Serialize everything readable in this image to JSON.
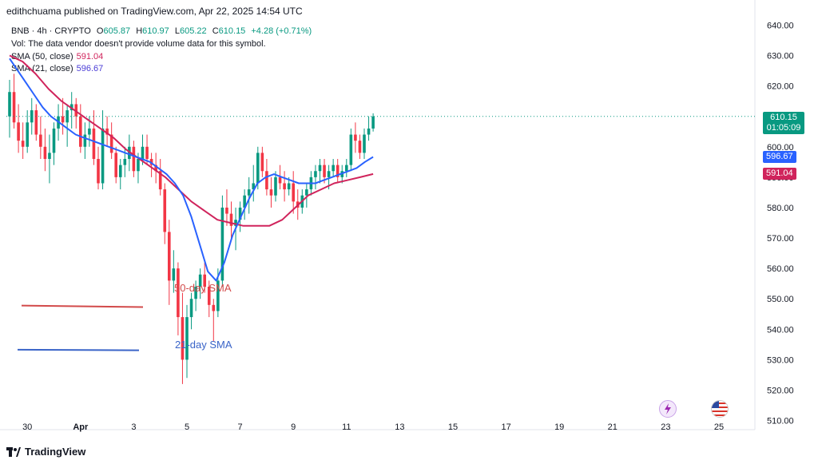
{
  "header": {
    "publisher": "edithchuama published on TradingView.com, Apr 22, 2025 14:54 UTC"
  },
  "legend": {
    "symbol": "BNB · 4h · CRYPTO",
    "o_label": "O",
    "o_value": "605.87",
    "h_label": "H",
    "h_value": "610.97",
    "l_label": "L",
    "l_value": "605.22",
    "c_label": "C",
    "c_value": "610.15",
    "change": "+4.28 (+0.71%)",
    "vol_text": "Vol: The data vendor doesn't provide volume data for this symbol.",
    "sma50_label": "SMA (50, close)",
    "sma50_value": "591.04",
    "sma21_label": "SMA (21, close)",
    "sma21_value": "596.67"
  },
  "annotations": {
    "sma50": "50-day SMA",
    "sma21": "21-day SMA"
  },
  "price_badges": {
    "last_price": "610.15",
    "countdown": "01:05:09",
    "sma21": "596.67",
    "sma50": "591.04"
  },
  "footer": {
    "brand": "TradingView"
  },
  "colors": {
    "up": "#089981",
    "down": "#f23645",
    "sma21": "#2962ff",
    "sma50": "#d0245c",
    "sma50_annot_line": "#d24a4a",
    "sma21_annot_line": "#3a64c8"
  },
  "chart_data": {
    "type": "candlestick",
    "timeframe": "4h",
    "y_ticks": [
      640,
      630,
      620,
      610,
      600,
      590,
      580,
      570,
      560,
      550,
      540,
      530,
      520,
      510
    ],
    "ylim": [
      507,
      643
    ],
    "x_ticks": [
      "30",
      "Apr",
      "3",
      "5",
      "7",
      "9",
      "11",
      "13",
      "15",
      "17",
      "19",
      "21",
      "23",
      "25"
    ],
    "x_tick_index": [
      4,
      16,
      28,
      40,
      52,
      64,
      76,
      88,
      100,
      112,
      124,
      136,
      148,
      160
    ],
    "candles": [
      [
        610,
        622,
        603,
        618
      ],
      [
        618,
        624,
        606,
        608
      ],
      [
        608,
        614,
        598,
        602
      ],
      [
        602,
        608,
        596,
        600
      ],
      [
        600,
        612,
        598,
        608
      ],
      [
        608,
        616,
        604,
        612
      ],
      [
        612,
        614,
        602,
        604
      ],
      [
        604,
        610,
        596,
        600
      ],
      [
        600,
        606,
        592,
        596
      ],
      [
        596,
        604,
        588,
        598
      ],
      [
        598,
        608,
        594,
        606
      ],
      [
        606,
        614,
        602,
        610
      ],
      [
        610,
        616,
        604,
        608
      ],
      [
        608,
        614,
        600,
        612
      ],
      [
        612,
        618,
        606,
        614
      ],
      [
        614,
        616,
        606,
        610
      ],
      [
        610,
        614,
        598,
        600
      ],
      [
        600,
        608,
        596,
        604
      ],
      [
        604,
        610,
        600,
        606
      ],
      [
        606,
        612,
        594,
        596
      ],
      [
        596,
        600,
        586,
        588
      ],
      [
        588,
        612,
        586,
        606
      ],
      [
        606,
        610,
        600,
        604
      ],
      [
        604,
        608,
        596,
        598
      ],
      [
        598,
        600,
        588,
        590
      ],
      [
        590,
        596,
        586,
        594
      ],
      [
        594,
        600,
        590,
        596
      ],
      [
        596,
        604,
        592,
        600
      ],
      [
        600,
        602,
        590,
        592
      ],
      [
        592,
        598,
        588,
        596
      ],
      [
        596,
        604,
        594,
        600
      ],
      [
        600,
        604,
        594,
        596
      ],
      [
        596,
        598,
        590,
        594
      ],
      [
        594,
        598,
        588,
        592
      ],
      [
        592,
        596,
        584,
        586
      ],
      [
        586,
        588,
        568,
        572
      ],
      [
        572,
        576,
        548,
        556
      ],
      [
        556,
        566,
        552,
        560
      ],
      [
        560,
        562,
        538,
        544
      ],
      [
        544,
        552,
        522,
        530
      ],
      [
        530,
        548,
        524,
        544
      ],
      [
        544,
        552,
        540,
        550
      ],
      [
        550,
        556,
        546,
        554
      ],
      [
        554,
        560,
        550,
        558
      ],
      [
        558,
        562,
        552,
        554
      ],
      [
        554,
        556,
        544,
        548
      ],
      [
        548,
        550,
        536,
        546
      ],
      [
        546,
        560,
        544,
        556
      ],
      [
        556,
        584,
        554,
        580
      ],
      [
        580,
        586,
        574,
        578
      ],
      [
        578,
        582,
        570,
        574
      ],
      [
        574,
        580,
        566,
        576
      ],
      [
        576,
        582,
        572,
        580
      ],
      [
        580,
        586,
        576,
        584
      ],
      [
        584,
        590,
        578,
        586
      ],
      [
        586,
        594,
        582,
        588
      ],
      [
        588,
        600,
        586,
        598
      ],
      [
        598,
        600,
        590,
        592
      ],
      [
        592,
        596,
        584,
        586
      ],
      [
        586,
        590,
        580,
        584
      ],
      [
        584,
        592,
        582,
        590
      ],
      [
        590,
        594,
        586,
        588
      ],
      [
        588,
        592,
        582,
        586
      ],
      [
        586,
        590,
        584,
        588
      ],
      [
        588,
        592,
        578,
        582
      ],
      [
        582,
        586,
        576,
        580
      ],
      [
        580,
        586,
        578,
        584
      ],
      [
        584,
        588,
        580,
        586
      ],
      [
        586,
        592,
        584,
        590
      ],
      [
        590,
        594,
        586,
        592
      ],
      [
        592,
        596,
        588,
        594
      ],
      [
        594,
        596,
        588,
        590
      ],
      [
        590,
        594,
        586,
        592
      ],
      [
        592,
        596,
        590,
        594
      ],
      [
        594,
        596,
        588,
        590
      ],
      [
        590,
        594,
        588,
        592
      ],
      [
        592,
        596,
        590,
        594
      ],
      [
        594,
        606,
        592,
        604
      ],
      [
        604,
        608,
        598,
        602
      ],
      [
        602,
        604,
        596,
        598
      ],
      [
        598,
        606,
        596,
        604
      ],
      [
        604,
        610,
        602,
        606
      ],
      [
        606,
        611,
        605,
        610
      ]
    ],
    "sma21": [
      629,
      625,
      621,
      617,
      613,
      610,
      608,
      606,
      604,
      603,
      602,
      601,
      600,
      599,
      598,
      597,
      596,
      595,
      593,
      591,
      588,
      584,
      577,
      568,
      559,
      556,
      562,
      571,
      577,
      583,
      588,
      590,
      591,
      590,
      589,
      588,
      588,
      588,
      589,
      590,
      591,
      592,
      593,
      595,
      596.67
    ],
    "sma50": [
      630,
      628,
      624,
      619,
      615,
      612,
      609,
      606,
      603,
      599,
      596,
      593,
      590,
      586,
      582,
      579,
      576,
      575,
      574,
      574,
      574,
      576,
      580,
      584,
      586,
      588,
      589,
      590,
      591.04
    ]
  }
}
